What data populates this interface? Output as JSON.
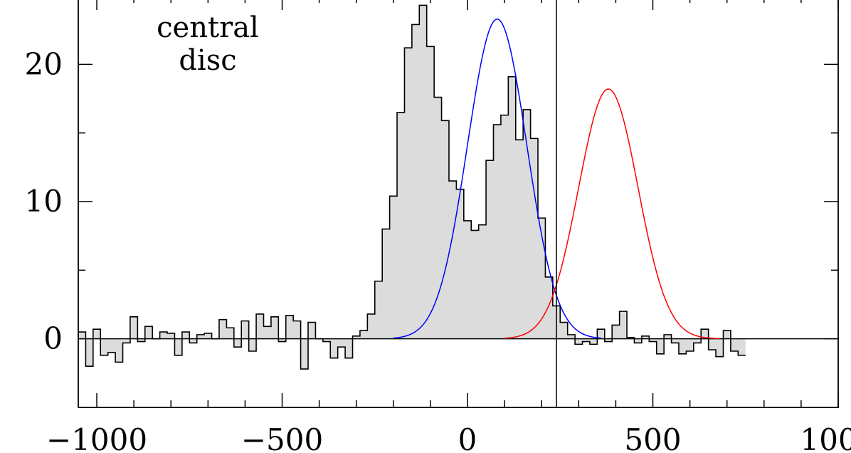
{
  "chart_data": {
    "type": "histogram",
    "annotation_lines": [
      "central",
      "disc"
    ],
    "xlim": [
      -1050,
      1000
    ],
    "ylim": [
      -5,
      25
    ],
    "x_ticks": [
      -1000,
      -500,
      0,
      500,
      1000
    ],
    "x_tick_labels": [
      "−1000",
      "−500",
      "0",
      "500",
      "1000"
    ],
    "y_ticks": [
      0,
      10,
      20
    ],
    "y_tick_labels": [
      "0",
      "10",
      "20"
    ],
    "vertical_line_x": 240,
    "bin_width": 20,
    "bins_start": -1050,
    "values": [
      0.5,
      -2,
      0.7,
      -1.2,
      -1,
      -1.7,
      -0.3,
      1.6,
      -0.2,
      0.9,
      0,
      0.5,
      0.4,
      -1.2,
      0.5,
      -0.3,
      0.3,
      0.4,
      0,
      1.4,
      0.8,
      -0.6,
      1.3,
      -0.9,
      1.8,
      0.9,
      1.6,
      -0.2,
      1.7,
      1.3,
      -2.2,
      1.2,
      0,
      -0.2,
      -1.4,
      -0.6,
      -1.4,
      0.2,
      0.6,
      1.8,
      4.2,
      8,
      10.4,
      16.5,
      21.2,
      22.9,
      24.3,
      21.3,
      17.6,
      15.9,
      11.5,
      10.9,
      8.6,
      7.9,
      8.3,
      13,
      15.6,
      16.3,
      19.1,
      14.5,
      16.7,
      14.6,
      8.8,
      4.5,
      2.4,
      1.2,
      0.3,
      -0.4,
      -0.2,
      -0.4,
      0.7,
      -0.2,
      1,
      2,
      0.1,
      -0.3,
      0.2,
      -0.2,
      -1.1,
      0.3,
      -0.3,
      -1.1,
      -0.9,
      -0.3,
      0.7,
      -0.8,
      -1.3,
      0.6,
      -0.9,
      -1.2
    ],
    "fill_color": "#dcdcdc",
    "series": [
      {
        "type": "gaussian",
        "color": "#0000ff",
        "amplitude": 23.3,
        "center": 80,
        "sigma": 80,
        "x_range": [
          -200,
          360
        ]
      },
      {
        "type": "gaussian",
        "color": "#ff0000",
        "amplitude": 18.2,
        "center": 380,
        "sigma": 80,
        "x_range": [
          100,
          680
        ]
      }
    ]
  }
}
